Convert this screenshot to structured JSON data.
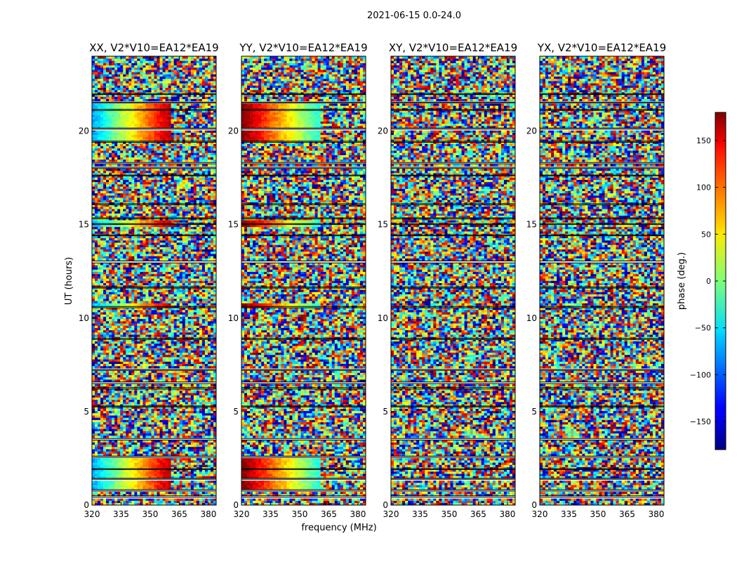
{
  "figure": {
    "suptitle": "2021-06-15 0.0-24.0",
    "ylabel": "UT (hours)",
    "xlabel": "frequency (MHz)"
  },
  "chart_data": {
    "type": "heatmap",
    "x_range_mhz": [
      320,
      384
    ],
    "y_range_hours": [
      0,
      24
    ],
    "x_ticks": [
      320,
      335,
      350,
      365,
      380
    ],
    "y_ticks": [
      0,
      5,
      10,
      15,
      20
    ],
    "panels": [
      {
        "title": "XX, V2*V10=EA12*EA19",
        "pol": "XX"
      },
      {
        "title": "YY, V2*V10=EA12*EA19",
        "pol": "YY"
      },
      {
        "title": "XY, V2*V10=EA12*EA19",
        "pol": "XY"
      },
      {
        "title": "YX, V2*V10=EA12*EA19",
        "pol": "YX"
      }
    ],
    "colorbar": {
      "label": "phase (deg.)",
      "range": [
        -180,
        180
      ],
      "ticks": [
        -150,
        -100,
        -50,
        0,
        50,
        100,
        150
      ],
      "colormap": "jet"
    },
    "flagged_ut_bands_hours": [
      [
        0.42,
        0.5
      ],
      [
        0.75,
        0.82
      ],
      [
        1.38,
        1.43
      ],
      [
        1.9,
        1.95
      ],
      [
        2.55,
        2.62
      ],
      [
        3.48,
        3.56
      ],
      [
        5.25,
        5.3
      ],
      [
        6.2,
        6.28
      ],
      [
        6.5,
        6.58
      ],
      [
        7.2,
        7.26
      ],
      [
        8.85,
        8.92
      ],
      [
        10.55,
        10.62
      ],
      [
        11.6,
        11.66
      ],
      [
        12.95,
        13.05
      ],
      [
        14.4,
        14.45
      ],
      [
        15.0,
        15.05
      ],
      [
        15.3,
        15.36
      ],
      [
        16.05,
        16.12
      ],
      [
        17.6,
        17.65
      ],
      [
        18.0,
        18.06
      ],
      [
        18.25,
        18.32
      ],
      [
        19.4,
        19.46
      ],
      [
        20.1,
        20.16
      ],
      [
        21.1,
        21.16
      ],
      [
        21.5,
        21.55
      ],
      [
        21.95,
        22.0
      ]
    ],
    "coherent_ut_bands_hours": {
      "XX": [
        [
          0.85,
          2.6
        ],
        [
          10.62,
          10.8
        ],
        [
          14.9,
          15.2
        ],
        [
          18.2,
          18.35
        ],
        [
          19.5,
          21.6
        ]
      ],
      "YY": [
        [
          0.85,
          2.6
        ],
        [
          10.62,
          10.8
        ],
        [
          14.9,
          15.2
        ],
        [
          18.2,
          18.35
        ],
        [
          19.5,
          21.6
        ]
      ]
    }
  }
}
